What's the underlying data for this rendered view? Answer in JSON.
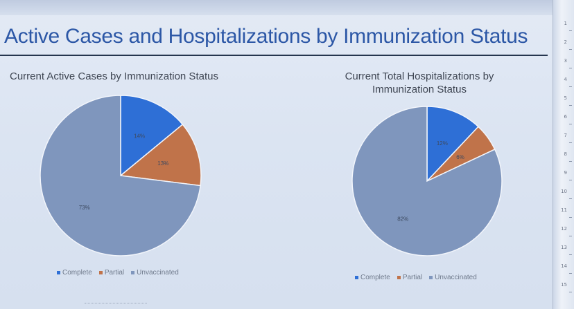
{
  "page": {
    "title": "Active Cases and Hospitalizations by Immunization Status"
  },
  "colors": {
    "complete": "#2e6fd6",
    "partial": "#c0734a",
    "unvaccinated": "#7f96bd",
    "title": "#2c57a6"
  },
  "ruler": {
    "labels": [
      "1",
      "2",
      "3",
      "4",
      "5",
      "6",
      "7",
      "8",
      "9",
      "10",
      "11",
      "12",
      "13",
      "14",
      "15"
    ]
  },
  "chart_data": [
    {
      "type": "pie",
      "title": "Current Active Cases by Immunization Status",
      "legend_position": "bottom",
      "slices": [
        {
          "label": "Complete",
          "value": 14,
          "display": "14%"
        },
        {
          "label": "Partial",
          "value": 13,
          "display": "13%"
        },
        {
          "label": "Unvaccinated",
          "value": 73,
          "display": "73%"
        }
      ]
    },
    {
      "type": "pie",
      "title": "Current Total Hospitalizations by Immunization Status",
      "legend_position": "bottom",
      "slices": [
        {
          "label": "Complete",
          "value": 12,
          "display": "12%"
        },
        {
          "label": "Partial",
          "value": 6,
          "display": "6%"
        },
        {
          "label": "Unvaccinated",
          "value": 82,
          "display": "82%"
        }
      ]
    }
  ]
}
